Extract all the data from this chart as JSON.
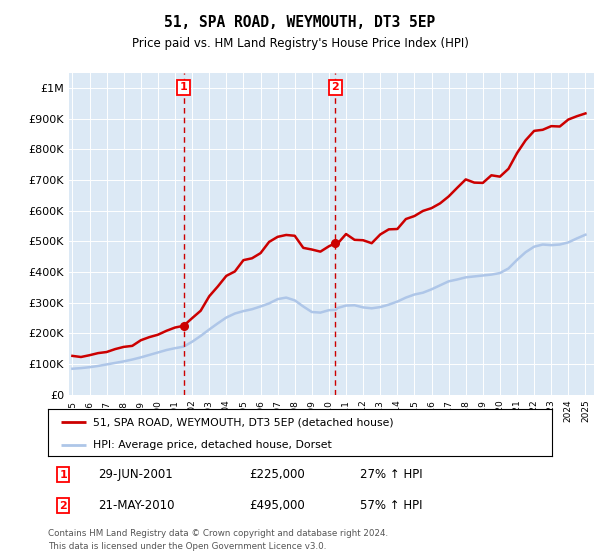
{
  "title": "51, SPA ROAD, WEYMOUTH, DT3 5EP",
  "subtitle": "Price paid vs. HM Land Registry's House Price Index (HPI)",
  "legend_line1": "51, SPA ROAD, WEYMOUTH, DT3 5EP (detached house)",
  "legend_line2": "HPI: Average price, detached house, Dorset",
  "annotation1_label": "1",
  "annotation1_date": "29-JUN-2001",
  "annotation1_price": "£225,000",
  "annotation1_hpi": "27% ↑ HPI",
  "annotation1_year": 2001.5,
  "annotation1_value": 225000,
  "annotation2_label": "2",
  "annotation2_date": "21-MAY-2010",
  "annotation2_price": "£495,000",
  "annotation2_hpi": "57% ↑ HPI",
  "annotation2_year": 2010.38,
  "annotation2_value": 495000,
  "footer": "Contains HM Land Registry data © Crown copyright and database right 2024.\nThis data is licensed under the Open Government Licence v3.0.",
  "hpi_color": "#aec6e8",
  "price_color": "#cc0000",
  "dashed_color": "#cc0000",
  "bg_color": "#dce9f5",
  "ylim": [
    0,
    1050000
  ],
  "xlim_start": 1994.8,
  "xlim_end": 2025.5,
  "yticks": [
    0,
    100000,
    200000,
    300000,
    400000,
    500000,
    600000,
    700000,
    800000,
    900000,
    1000000
  ],
  "xtick_start": 1995,
  "xtick_end": 2025
}
